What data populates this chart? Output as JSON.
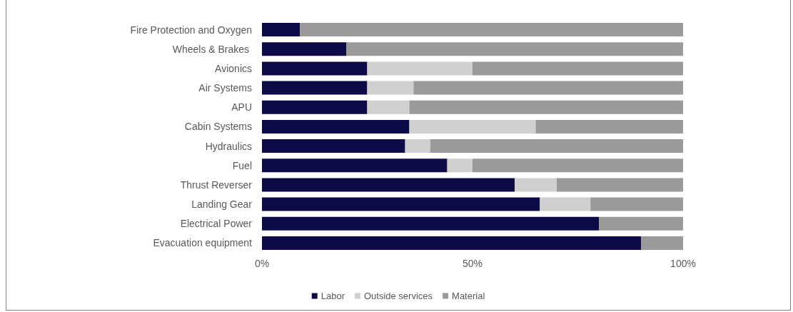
{
  "chart_data": {
    "type": "bar",
    "orientation": "horizontal",
    "stacked": true,
    "categories": [
      "Fire Protection and Oxygen",
      "Wheels & Brakes ",
      "Avionics",
      "Air Systems",
      "APU",
      "Cabin Systems",
      "Hydraulics",
      "Fuel",
      "Thrust Reverser",
      "Landing Gear",
      "Electrical Power",
      "Evacuation equipment"
    ],
    "series": [
      {
        "name": "Labor",
        "color": "#0c0a47",
        "values": [
          9,
          20,
          25,
          25,
          25,
          35,
          34,
          44,
          60,
          66,
          80,
          90
        ]
      },
      {
        "name": "Outside services",
        "color": "#d0d0d0",
        "values": [
          0,
          0,
          25,
          11,
          10,
          30,
          6,
          6,
          10,
          12,
          0,
          0
        ]
      },
      {
        "name": "Material",
        "color": "#9a9a9a",
        "values": [
          91,
          80,
          50,
          64,
          65,
          35,
          60,
          50,
          30,
          22,
          20,
          10
        ]
      }
    ],
    "xlim": [
      0,
      100
    ],
    "xticks": [
      {
        "value": 0,
        "label": "0%"
      },
      {
        "value": 50,
        "label": "50%"
      },
      {
        "value": 100,
        "label": "100%"
      }
    ],
    "grid": false,
    "legend": "bottom"
  }
}
